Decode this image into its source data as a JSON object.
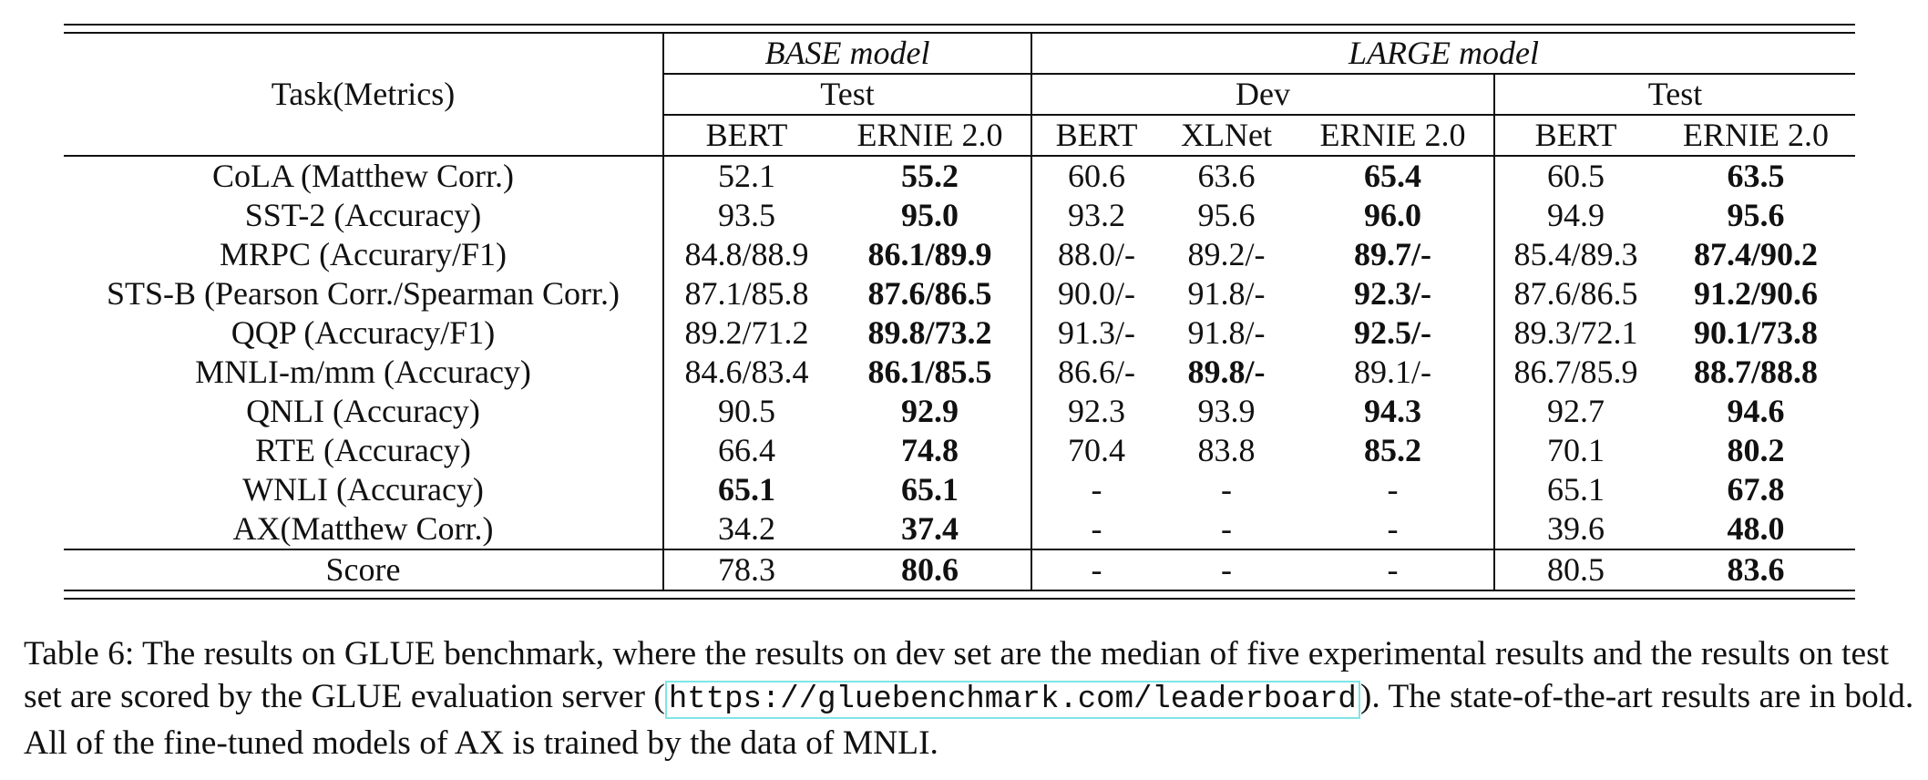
{
  "table": {
    "header": {
      "task_label": "Task(Metrics)",
      "base_model": "BASE model",
      "large_model": "LARGE model",
      "test": "Test",
      "dev": "Dev",
      "test2": "Test",
      "cols": [
        "BERT",
        "ERNIE 2.0",
        "BERT",
        "XLNet",
        "ERNIE 2.0",
        "BERT",
        "ERNIE 2.0"
      ]
    },
    "rows": [
      {
        "task": "CoLA (Matthew Corr.)",
        "cells": [
          "52.1",
          "55.2",
          "60.6",
          "63.6",
          "65.4",
          "60.5",
          "63.5"
        ],
        "bold": [
          1,
          4,
          6
        ]
      },
      {
        "task": "SST-2 (Accuracy)",
        "cells": [
          "93.5",
          "95.0",
          "93.2",
          "95.6",
          "96.0",
          "94.9",
          "95.6"
        ],
        "bold": [
          1,
          4,
          6
        ]
      },
      {
        "task": "MRPC (Accurary/F1)",
        "cells": [
          "84.8/88.9",
          "86.1/89.9",
          "88.0/-",
          "89.2/-",
          "89.7/-",
          "85.4/89.3",
          "87.4/90.2"
        ],
        "bold": [
          1,
          4,
          6
        ]
      },
      {
        "task": "STS-B (Pearson Corr./Spearman Corr.)",
        "cells": [
          "87.1/85.8",
          "87.6/86.5",
          "90.0/-",
          "91.8/-",
          "92.3/-",
          "87.6/86.5",
          "91.2/90.6"
        ],
        "bold": [
          1,
          4,
          6
        ]
      },
      {
        "task": "QQP (Accuracy/F1)",
        "cells": [
          "89.2/71.2",
          "89.8/73.2",
          "91.3/-",
          "91.8/-",
          "92.5/-",
          "89.3/72.1",
          "90.1/73.8"
        ],
        "bold": [
          1,
          4,
          6
        ]
      },
      {
        "task": "MNLI-m/mm (Accuracy)",
        "cells": [
          "84.6/83.4",
          "86.1/85.5",
          "86.6/-",
          "89.8/-",
          "89.1/-",
          "86.7/85.9",
          "88.7/88.8"
        ],
        "bold": [
          1,
          3,
          6
        ]
      },
      {
        "task": "QNLI (Accuracy)",
        "cells": [
          "90.5",
          "92.9",
          "92.3",
          "93.9",
          "94.3",
          "92.7",
          "94.6"
        ],
        "bold": [
          1,
          4,
          6
        ]
      },
      {
        "task": "RTE (Accuracy)",
        "cells": [
          "66.4",
          "74.8",
          "70.4",
          "83.8",
          "85.2",
          "70.1",
          "80.2"
        ],
        "bold": [
          1,
          4,
          6
        ]
      },
      {
        "task": "WNLI (Accuracy)",
        "cells": [
          "65.1",
          "65.1",
          "-",
          "-",
          "-",
          "65.1",
          "67.8"
        ],
        "bold": [
          0,
          1,
          6
        ]
      },
      {
        "task": "AX(Matthew Corr.)",
        "cells": [
          "34.2",
          "37.4",
          "-",
          "-",
          "-",
          "39.6",
          "48.0"
        ],
        "bold": [
          1,
          6
        ]
      }
    ],
    "score_row": {
      "task": "Score",
      "cells": [
        "78.3",
        "80.6",
        "-",
        "-",
        "-",
        "80.5",
        "83.6"
      ],
      "bold": [
        1,
        6
      ]
    }
  },
  "caption": {
    "part1": "Table 6: The results on GLUE benchmark, where the results on dev set are the median of five experimental results and the results on test set are scored by the GLUE evaluation server (",
    "url": "https://gluebenchmark.com/leaderboard",
    "part2": "). The state-of-the-art results are in bold. All of the fine-tuned models of AX is trained by the data of MNLI."
  }
}
